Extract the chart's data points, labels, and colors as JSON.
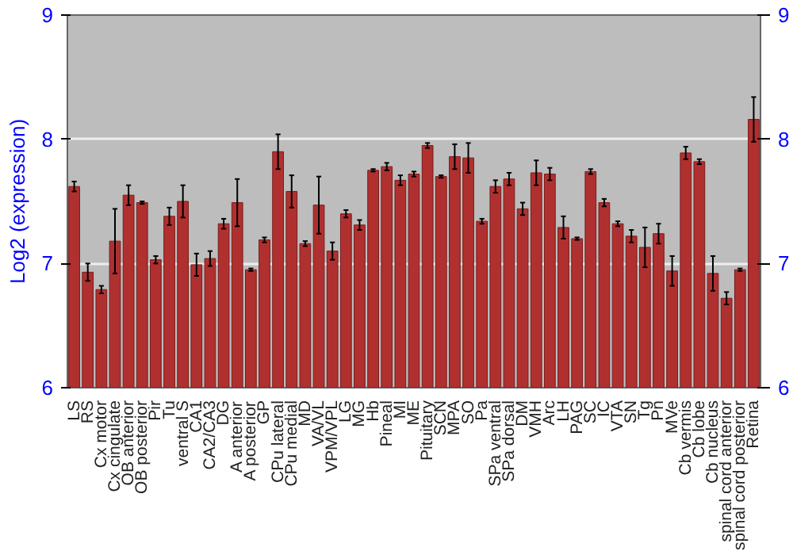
{
  "chart_data": {
    "type": "bar",
    "ylabel": "Log2 (expression)",
    "categories": [
      "LS",
      "RS",
      "Cx motor",
      "Cx cingulate",
      "OB anterior",
      "OB posterior",
      "Pir",
      "Tu",
      "ventral S",
      "CA1",
      "CA2/CA3",
      "DG",
      "A anterior",
      "A posterior",
      "GP",
      "CPu lateral",
      "CPu medial",
      "MD",
      "VA/VL",
      "VPM/VPL",
      "LG",
      "MG",
      "Hb",
      "Pineal",
      "MI",
      "ME",
      "Pituitary",
      "SCN",
      "MPA",
      "SO",
      "Pa",
      "SPa ventral",
      "SPa dorsal",
      "DM",
      "VMH",
      "Arc",
      "LH",
      "PAG",
      "SC",
      "IC",
      "VTA",
      "SN",
      "Tg",
      "Pn",
      "MVe",
      "Cb vermis",
      "Cb lobe",
      "Cb nucleus",
      "spinal cord anterior",
      "spinal cord posterior",
      "Retina"
    ],
    "values": [
      7.62,
      6.93,
      6.79,
      7.18,
      7.55,
      7.49,
      7.03,
      7.38,
      7.5,
      6.99,
      7.04,
      7.32,
      7.49,
      6.95,
      7.19,
      7.9,
      7.58,
      7.16,
      7.47,
      7.1,
      7.4,
      7.31,
      7.75,
      7.78,
      7.67,
      7.72,
      7.95,
      7.7,
      7.86,
      7.85,
      7.34,
      7.62,
      7.68,
      7.44,
      7.73,
      7.72,
      7.29,
      7.2,
      7.74,
      7.49,
      7.32,
      7.22,
      7.13,
      7.24,
      6.94,
      7.89,
      7.82,
      6.92,
      6.72,
      6.95,
      8.16
    ],
    "errors": [
      0.04,
      0.07,
      0.03,
      0.26,
      0.08,
      0.01,
      0.03,
      0.07,
      0.13,
      0.09,
      0.06,
      0.04,
      0.19,
      0.01,
      0.02,
      0.14,
      0.13,
      0.02,
      0.23,
      0.07,
      0.03,
      0.04,
      0.01,
      0.03,
      0.04,
      0.02,
      0.02,
      0.01,
      0.1,
      0.12,
      0.02,
      0.05,
      0.05,
      0.05,
      0.1,
      0.05,
      0.09,
      0.01,
      0.02,
      0.03,
      0.02,
      0.05,
      0.16,
      0.08,
      0.12,
      0.05,
      0.02,
      0.14,
      0.05,
      0.01,
      0.18
    ],
    "color": "#b03030",
    "ylim": [
      6,
      9
    ],
    "yticks": [
      6,
      7,
      8,
      9
    ],
    "y2lim": [
      6,
      9
    ],
    "y2ticks": [
      6,
      7,
      8,
      9
    ],
    "grid": "y"
  }
}
